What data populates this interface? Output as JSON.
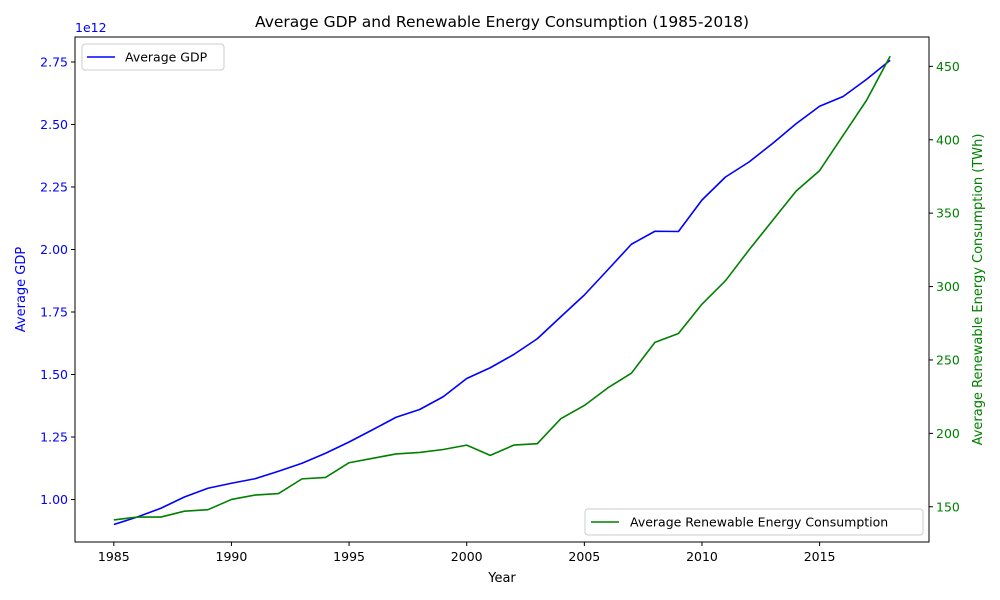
{
  "chart_data": {
    "type": "line",
    "title": "Average GDP and Renewable Energy Consumption (1985-2018)",
    "xlabel": "Year",
    "xlim": [
      1983.35,
      2019.65
    ],
    "x_ticks": [
      1985,
      1990,
      1995,
      2000,
      2005,
      2010,
      2015
    ],
    "grid": false,
    "x": [
      1985,
      1986,
      1987,
      1988,
      1989,
      1990,
      1991,
      1992,
      1993,
      1994,
      1995,
      1996,
      1997,
      1998,
      1999,
      2000,
      2001,
      2002,
      2003,
      2004,
      2005,
      2006,
      2007,
      2008,
      2009,
      2010,
      2011,
      2012,
      2013,
      2014,
      2015,
      2016,
      2017,
      2018
    ],
    "left_axis": {
      "label": "Average GDP",
      "color": "#0000ff",
      "offset_text": "1e12",
      "ylim": [
        0.83,
        2.85
      ],
      "ticks": [
        1.0,
        1.25,
        1.5,
        1.75,
        2.0,
        2.25,
        2.5,
        2.75
      ],
      "tick_labels": [
        "1.00",
        "1.25",
        "1.50",
        "1.75",
        "2.00",
        "2.25",
        "2.50",
        "2.75"
      ]
    },
    "right_axis": {
      "label": "Average Renewable Energy Consumption (TWh)",
      "color": "#008000",
      "ylim": [
        126,
        470
      ],
      "ticks": [
        150,
        200,
        250,
        300,
        350,
        400,
        450
      ],
      "tick_labels": [
        "150",
        "200",
        "250",
        "300",
        "350",
        "400",
        "450"
      ]
    },
    "series": [
      {
        "name": "Average GDP",
        "axis": "left",
        "color": "#0000ff",
        "legend_position": "upper-left",
        "values": [
          0.9,
          0.93,
          0.965,
          1.01,
          1.045,
          1.065,
          1.083,
          1.113,
          1.145,
          1.185,
          1.23,
          1.279,
          1.329,
          1.36,
          1.411,
          1.484,
          1.527,
          1.58,
          1.643,
          1.731,
          1.818,
          1.919,
          2.021,
          2.073,
          2.072,
          2.198,
          2.29,
          2.35,
          2.424,
          2.503,
          2.573,
          2.612,
          2.681,
          2.757
        ]
      },
      {
        "name": "Average Renewable Energy Consumption",
        "axis": "right",
        "color": "#008000",
        "legend_position": "lower-right",
        "values": [
          141,
          143,
          143,
          147,
          148,
          155,
          158,
          159,
          169,
          170,
          180,
          183,
          186,
          187,
          189,
          192,
          185,
          192,
          193,
          210,
          219,
          231,
          241,
          262,
          268,
          288,
          304,
          325,
          345,
          365,
          379,
          403,
          427,
          457
        ]
      }
    ]
  }
}
